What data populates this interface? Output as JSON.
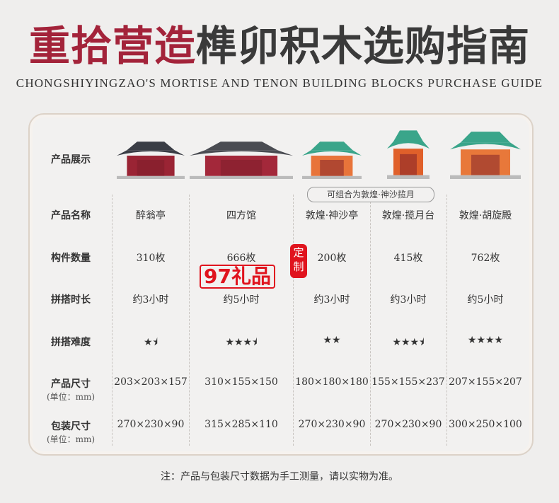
{
  "title": {
    "red": "重拾营造",
    "dark": "榫卯积木选购指南"
  },
  "subtitle": "CHONGSHIYINGZAO'S MORTISE AND TENON BUILDING BLOCKS PURCHASE GUIDE",
  "row_labels": {
    "display": "产品展示",
    "name": "产品名称",
    "pieces": "构件数量",
    "time": "拼搭时长",
    "difficulty": "拼搭难度",
    "size": "产品尺寸",
    "package": "包装尺寸",
    "unit": "(单位：mm)"
  },
  "combo_label": "可组合为敦煌·神沙揽月",
  "products": [
    {
      "name": "醉翁亭",
      "pieces": "310枚",
      "time": "约3小时",
      "stars": "★⯨",
      "rating": 1.5,
      "size": "203×203×157",
      "package": "270×230×90",
      "roof": "#3a3d45",
      "body": "#9a2434"
    },
    {
      "name": "四方馆",
      "pieces": "666枚",
      "time": "约5小时",
      "stars": "★★★⯨",
      "rating": 3.5,
      "size": "310×155×150",
      "package": "315×285×110",
      "roof": "#4a4c52",
      "body": "#a3283a"
    },
    {
      "name": "敦煌·神沙亭",
      "pieces": "200枚",
      "time": "约3小时",
      "stars": "★★",
      "rating": 2,
      "size": "180×180×180",
      "package": "270×230×90",
      "roof": "#3aa58a",
      "body": "#e8743a"
    },
    {
      "name": "敦煌·揽月台",
      "pieces": "415枚",
      "time": "约3小时",
      "stars": "★★★⯨",
      "rating": 3.5,
      "size": "155×155×237",
      "package": "270×230×90",
      "roof": "#3aa58a",
      "body": "#e0602a"
    },
    {
      "name": "敦煌·胡旋殿",
      "pieces": "762枚",
      "time": "约5小时",
      "stars": "★★★★",
      "rating": 4,
      "size": "207×155×207",
      "package": "300×250×100",
      "roof": "#3aa58a",
      "body": "#e8783a"
    }
  ],
  "watermark": {
    "brand": "97礼品",
    "seal": "定制"
  },
  "note": "注：产品与包装尺寸数据为手工测量，请以实物为准。"
}
